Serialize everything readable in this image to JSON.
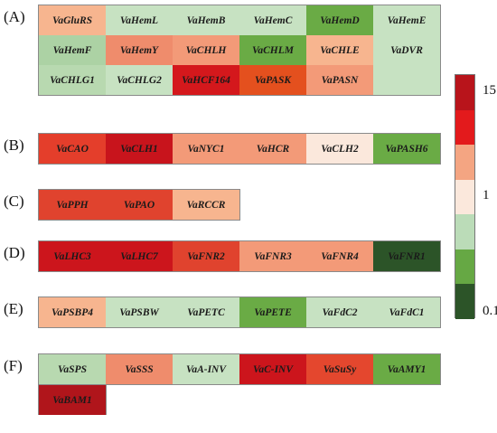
{
  "chart_data": {
    "type": "heatmap",
    "colorbar": {
      "ticks": [
        "15",
        "1",
        "0.1"
      ],
      "levels": [
        {
          "color": "#b8141b"
        },
        {
          "color": "#e31a1c"
        },
        {
          "color": "#f4a582"
        },
        {
          "color": "#fbe8dc"
        },
        {
          "color": "#bbdcb8"
        },
        {
          "color": "#66a844"
        },
        {
          "color": "#2c5428"
        }
      ]
    },
    "panels": [
      {
        "label": "(A)",
        "rows": [
          [
            {
              "gene": "VaGluRS",
              "color": "#f7b58f"
            },
            {
              "gene": "VaHemL",
              "color": "#c7e2c2"
            },
            {
              "gene": "VaHemB",
              "color": "#c7e2c2"
            },
            {
              "gene": "VaHemC",
              "color": "#c7e2c2"
            },
            {
              "gene": "VaHemD",
              "color": "#6aab45"
            },
            {
              "gene": "VaHemE",
              "color": "#c7e2c2"
            }
          ],
          [
            {
              "gene": "VaHemF",
              "color": "#acd2a4"
            },
            {
              "gene": "VaHemY",
              "color": "#ef8c6c"
            },
            {
              "gene": "VaCHLH",
              "color": "#f39a78"
            },
            {
              "gene": "VaCHLM",
              "color": "#6aab45"
            },
            {
              "gene": "VaCHLE",
              "color": "#f7b58f"
            },
            {
              "gene": "VaDVR",
              "color": "#c7e2c2"
            }
          ],
          [
            {
              "gene": "VaCHLG1",
              "color": "#b8d9b0"
            },
            {
              "gene": "VaCHLG2",
              "color": "#c7e2c2"
            },
            {
              "gene": "VaHCF164",
              "color": "#d4181c"
            },
            {
              "gene": "VaPASK",
              "color": "#e4501e"
            },
            {
              "gene": "VaPASN",
              "color": "#f39a78"
            }
          ]
        ]
      },
      {
        "label": "(B)",
        "rows": [
          [
            {
              "gene": "VaCAO",
              "color": "#e43e2b"
            },
            {
              "gene": "VaCLH1",
              "color": "#c8141c"
            },
            {
              "gene": "VaNYC1",
              "color": "#f39a78"
            },
            {
              "gene": "VaHCR",
              "color": "#f39a78"
            },
            {
              "gene": "VaCLH2",
              "color": "#fbe8dc"
            },
            {
              "gene": "VaPASH6",
              "color": "#6aab45"
            }
          ]
        ]
      },
      {
        "label": "(C)",
        "rows": [
          [
            {
              "gene": "VaPPH",
              "color": "#e0432e"
            },
            {
              "gene": "VaPAO",
              "color": "#e0432e"
            },
            {
              "gene": "VaRCCR",
              "color": "#f7b58f"
            }
          ]
        ]
      },
      {
        "label": "(D)",
        "rows": [
          [
            {
              "gene": "VaLHC3",
              "color": "#cc151c"
            },
            {
              "gene": "VaLHC7",
              "color": "#cc151c"
            },
            {
              "gene": "VaFNR2",
              "color": "#e0432e"
            },
            {
              "gene": "VaFNR3",
              "color": "#f39a78"
            },
            {
              "gene": "VaFNR4",
              "color": "#f39a78"
            },
            {
              "gene": "VaFNR1",
              "color": "#2c5428"
            }
          ]
        ]
      },
      {
        "label": "(E)",
        "rows": [
          [
            {
              "gene": "VaPSBP4",
              "color": "#f7b58f"
            },
            {
              "gene": "VaPSBW",
              "color": "#c7e2c2"
            },
            {
              "gene": "VaPETC",
              "color": "#c7e2c2"
            },
            {
              "gene": "VaPETE",
              "color": "#6aab45"
            },
            {
              "gene": "VaFdC2",
              "color": "#c7e2c2"
            },
            {
              "gene": "VaFdC1",
              "color": "#c7e2c2"
            }
          ]
        ]
      },
      {
        "label": "(F)",
        "rows": [
          [
            {
              "gene": "VaSPS",
              "color": "#b8d9b0"
            },
            {
              "gene": "VaSSS",
              "color": "#ef8c6c"
            },
            {
              "gene": "VaA-INV",
              "color": "#c7e2c2"
            },
            {
              "gene": "VaC-INV",
              "color": "#cc151c"
            },
            {
              "gene": "VaSuSy",
              "color": "#e4472e"
            },
            {
              "gene": "VaAMY1",
              "color": "#6aab45"
            }
          ],
          [
            {
              "gene": "VaBAM1",
              "color": "#b0151b"
            }
          ]
        ]
      }
    ]
  }
}
